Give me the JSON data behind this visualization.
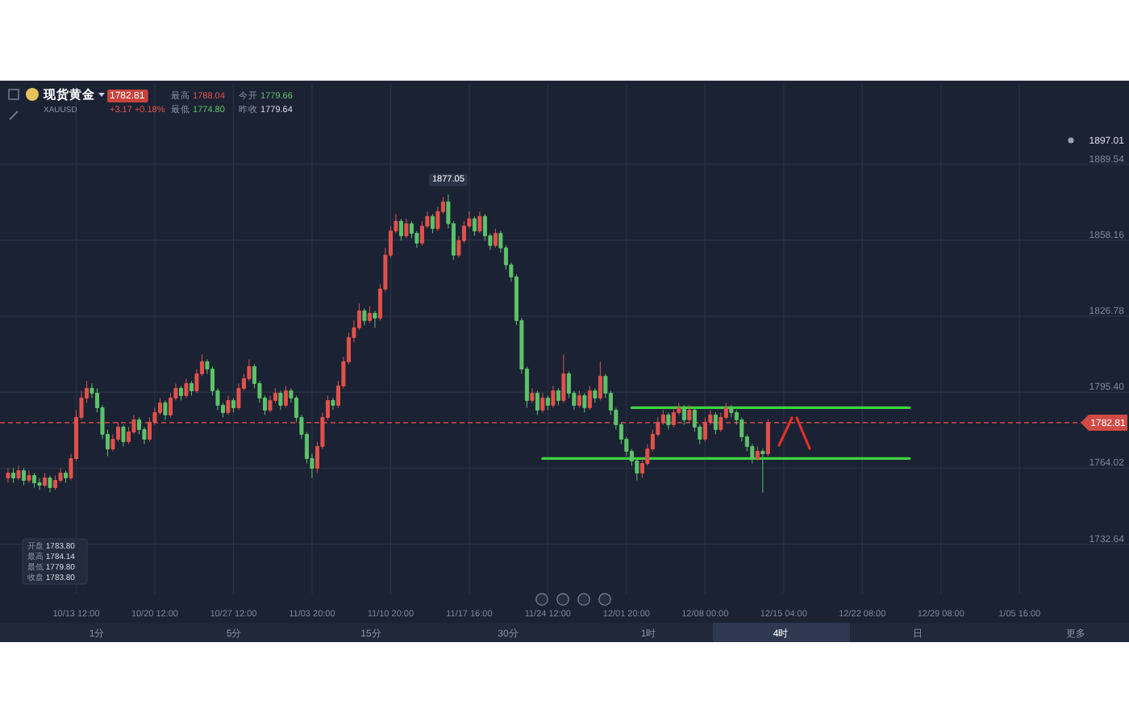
{
  "chart_data": {
    "type": "candlestick",
    "title": "现货黄金",
    "subtitle": "XAUUSD",
    "categories": [
      null,
      null,
      null,
      null,
      null,
      null,
      null,
      null,
      null,
      null,
      null,
      null,
      null,
      "10/13 12:00",
      null,
      null,
      null,
      null,
      null,
      null,
      null,
      null,
      null,
      null,
      null,
      null,
      null,
      null,
      "10/20 12:00",
      null,
      null,
      null,
      null,
      null,
      null,
      null,
      null,
      null,
      null,
      null,
      null,
      null,
      null,
      "10/27 12:00",
      null,
      null,
      null,
      null,
      null,
      null,
      null,
      null,
      null,
      null,
      null,
      null,
      null,
      null,
      "11/03 20:00",
      null,
      null,
      null,
      null,
      null,
      null,
      null,
      null,
      null,
      null,
      null,
      null,
      null,
      null,
      "11/10 20:00",
      null,
      null,
      null,
      null,
      null,
      null,
      null,
      null,
      null,
      null,
      null,
      null,
      null,
      null,
      "11/17 16:00",
      null,
      null,
      null,
      null,
      null,
      null,
      null,
      null,
      null,
      null,
      null,
      null,
      null,
      null,
      "11/24 12:00",
      null,
      null,
      null,
      null,
      null,
      null,
      null,
      null,
      null,
      null,
      null,
      null,
      null,
      null,
      "12/01 20:00",
      null,
      null,
      null,
      null,
      null,
      null,
      null,
      null,
      null,
      null,
      null,
      null,
      null,
      null,
      "12/08 00:00",
      null,
      null,
      null,
      null,
      null,
      null,
      null,
      null,
      null,
      null,
      null,
      null,
      null,
      null,
      "12/15 04:00",
      null,
      null,
      null,
      null,
      null,
      null,
      null,
      null,
      null,
      null,
      null,
      null,
      null,
      null,
      "12/22 08:00",
      null,
      null,
      null,
      null,
      null,
      null,
      null,
      null,
      null,
      null,
      null,
      null,
      null,
      null,
      "12/29 08:00",
      null,
      null,
      null,
      null,
      null,
      null,
      null,
      null,
      null,
      null,
      null,
      null,
      null,
      null,
      "1/05 16:00",
      null,
      null,
      null,
      null,
      null
    ],
    "ohlc": [
      [
        1760,
        1764,
        1758,
        1762
      ],
      [
        1762,
        1764,
        1758,
        1760
      ],
      [
        1760,
        1765,
        1759,
        1763
      ],
      [
        1763,
        1764,
        1757,
        1759
      ],
      [
        1759,
        1763,
        1758,
        1761
      ],
      [
        1761,
        1762,
        1756,
        1758
      ],
      [
        1758,
        1760,
        1755,
        1757
      ],
      [
        1757,
        1762,
        1756,
        1760
      ],
      [
        1760,
        1761,
        1754,
        1756
      ],
      [
        1756,
        1761,
        1755,
        1759
      ],
      [
        1759,
        1764,
        1758,
        1762
      ],
      [
        1762,
        1763,
        1758,
        1760
      ],
      [
        1760,
        1770,
        1759,
        1768
      ],
      [
        1768,
        1788,
        1767,
        1785
      ],
      [
        1785,
        1796,
        1784,
        1793
      ],
      [
        1793,
        1800,
        1791,
        1797
      ],
      [
        1797,
        1799,
        1793,
        1795
      ],
      [
        1795,
        1797,
        1787,
        1789
      ],
      [
        1789,
        1790,
        1776,
        1778
      ],
      [
        1778,
        1780,
        1769,
        1772
      ],
      [
        1772,
        1778,
        1771,
        1776
      ],
      [
        1776,
        1783,
        1775,
        1781
      ],
      [
        1781,
        1782,
        1773,
        1775
      ],
      [
        1775,
        1781,
        1774,
        1779
      ],
      [
        1779,
        1786,
        1778,
        1784
      ],
      [
        1784,
        1785,
        1778,
        1780
      ],
      [
        1780,
        1781,
        1774,
        1776
      ],
      [
        1776,
        1785,
        1775,
        1783
      ],
      [
        1783,
        1789,
        1782,
        1787
      ],
      [
        1787,
        1793,
        1786,
        1791
      ],
      [
        1791,
        1792,
        1784,
        1786
      ],
      [
        1786,
        1795,
        1785,
        1793
      ],
      [
        1793,
        1799,
        1792,
        1797
      ],
      [
        1797,
        1798,
        1792,
        1794
      ],
      [
        1794,
        1801,
        1793,
        1799
      ],
      [
        1799,
        1800,
        1794,
        1796
      ],
      [
        1796,
        1805,
        1795,
        1803
      ],
      [
        1803,
        1811,
        1802,
        1808
      ],
      [
        1808,
        1809,
        1803,
        1805
      ],
      [
        1805,
        1806,
        1794,
        1796
      ],
      [
        1796,
        1797,
        1788,
        1790
      ],
      [
        1790,
        1791,
        1785,
        1787
      ],
      [
        1787,
        1794,
        1786,
        1792
      ],
      [
        1792,
        1793,
        1787,
        1789
      ],
      [
        1789,
        1799,
        1788,
        1797
      ],
      [
        1797,
        1803,
        1796,
        1801
      ],
      [
        1801,
        1809,
        1800,
        1806
      ],
      [
        1806,
        1807,
        1797,
        1799
      ],
      [
        1799,
        1800,
        1791,
        1793
      ],
      [
        1793,
        1794,
        1786,
        1788
      ],
      [
        1788,
        1794,
        1787,
        1792
      ],
      [
        1792,
        1797,
        1791,
        1795
      ],
      [
        1795,
        1796,
        1788,
        1790
      ],
      [
        1790,
        1798,
        1789,
        1796
      ],
      [
        1796,
        1797,
        1791,
        1793
      ],
      [
        1793,
        1794,
        1783,
        1785
      ],
      [
        1785,
        1786,
        1776,
        1778
      ],
      [
        1778,
        1779,
        1766,
        1768
      ],
      [
        1768,
        1770,
        1760,
        1764
      ],
      [
        1764,
        1775,
        1762,
        1773
      ],
      [
        1773,
        1787,
        1772,
        1785
      ],
      [
        1785,
        1794,
        1784,
        1792
      ],
      [
        1792,
        1793,
        1788,
        1790
      ],
      [
        1790,
        1800,
        1789,
        1798
      ],
      [
        1798,
        1810,
        1797,
        1808
      ],
      [
        1808,
        1820,
        1807,
        1818
      ],
      [
        1818,
        1825,
        1816,
        1822
      ],
      [
        1822,
        1832,
        1821,
        1829
      ],
      [
        1829,
        1830,
        1823,
        1825
      ],
      [
        1825,
        1831,
        1824,
        1828
      ],
      [
        1828,
        1829,
        1822,
        1826
      ],
      [
        1826,
        1840,
        1825,
        1838
      ],
      [
        1838,
        1855,
        1837,
        1852
      ],
      [
        1852,
        1864,
        1851,
        1862
      ],
      [
        1862,
        1869,
        1861,
        1866
      ],
      [
        1866,
        1867,
        1858,
        1860
      ],
      [
        1860,
        1867,
        1859,
        1865
      ],
      [
        1865,
        1866,
        1859,
        1861
      ],
      [
        1861,
        1862,
        1855,
        1857
      ],
      [
        1857,
        1866,
        1856,
        1864
      ],
      [
        1864,
        1870,
        1863,
        1868
      ],
      [
        1868,
        1869,
        1861,
        1863
      ],
      [
        1863,
        1872,
        1862,
        1870
      ],
      [
        1870,
        1876,
        1869,
        1874
      ],
      [
        1874,
        1877.05,
        1863,
        1865
      ],
      [
        1865,
        1866,
        1850,
        1852
      ],
      [
        1852,
        1860,
        1851,
        1858
      ],
      [
        1858,
        1866,
        1857,
        1864
      ],
      [
        1864,
        1870,
        1863,
        1867
      ],
      [
        1867,
        1868,
        1860,
        1862
      ],
      [
        1862,
        1870,
        1861,
        1868
      ],
      [
        1868,
        1869,
        1858,
        1860
      ],
      [
        1860,
        1861,
        1854,
        1856
      ],
      [
        1856,
        1863,
        1855,
        1861
      ],
      [
        1861,
        1862,
        1853,
        1855
      ],
      [
        1855,
        1856,
        1846,
        1848
      ],
      [
        1848,
        1849,
        1841,
        1843
      ],
      [
        1843,
        1844,
        1823,
        1825
      ],
      [
        1825,
        1826,
        1803,
        1805
      ],
      [
        1805,
        1806,
        1789,
        1792
      ],
      [
        1792,
        1797,
        1791,
        1795
      ],
      [
        1795,
        1796,
        1786,
        1788
      ],
      [
        1788,
        1795,
        1787,
        1793
      ],
      [
        1793,
        1794,
        1788,
        1790
      ],
      [
        1790,
        1798,
        1789,
        1796
      ],
      [
        1796,
        1797,
        1790,
        1792
      ],
      [
        1792,
        1811,
        1791,
        1803
      ],
      [
        1803,
        1804,
        1793,
        1795
      ],
      [
        1795,
        1796,
        1788,
        1790
      ],
      [
        1790,
        1796,
        1789,
        1794
      ],
      [
        1794,
        1795,
        1787,
        1789
      ],
      [
        1789,
        1798,
        1788,
        1796
      ],
      [
        1796,
        1797,
        1791,
        1793
      ],
      [
        1793,
        1808,
        1792,
        1802
      ],
      [
        1802,
        1803,
        1793,
        1795
      ],
      [
        1795,
        1796,
        1786,
        1788
      ],
      [
        1788,
        1789,
        1780,
        1782
      ],
      [
        1782,
        1783,
        1774,
        1776
      ],
      [
        1776,
        1777,
        1769,
        1771
      ],
      [
        1771,
        1772,
        1765,
        1767
      ],
      [
        1767,
        1768,
        1759,
        1762
      ],
      [
        1762,
        1768,
        1760,
        1766
      ],
      [
        1766,
        1774,
        1765,
        1772
      ],
      [
        1772,
        1780,
        1771,
        1778
      ],
      [
        1778,
        1785,
        1777,
        1783
      ],
      [
        1783,
        1788,
        1782,
        1786
      ],
      [
        1786,
        1787,
        1780,
        1782
      ],
      [
        1782,
        1789,
        1781,
        1787
      ],
      [
        1787,
        1791,
        1786,
        1789
      ],
      [
        1789,
        1790,
        1782,
        1784
      ],
      [
        1784,
        1790,
        1783,
        1788
      ],
      [
        1788,
        1789,
        1779,
        1781
      ],
      [
        1781,
        1782,
        1774,
        1776
      ],
      [
        1776,
        1785,
        1775,
        1783
      ],
      [
        1783,
        1788,
        1782,
        1786
      ],
      [
        1786,
        1787,
        1778,
        1780
      ],
      [
        1780,
        1787,
        1779,
        1785
      ],
      [
        1785,
        1791,
        1784,
        1789
      ],
      [
        1789,
        1790,
        1785,
        1787
      ],
      [
        1787,
        1788,
        1782,
        1784
      ],
      [
        1784,
        1785,
        1775,
        1777
      ],
      [
        1777,
        1778,
        1771,
        1773
      ],
      [
        1773,
        1774,
        1766,
        1768
      ],
      [
        1768,
        1773,
        1767,
        1771
      ],
      [
        1771,
        1772,
        1754,
        1770
      ],
      [
        1770,
        1784.14,
        1769,
        1782.81
      ],
      null,
      null,
      null,
      null,
      null,
      null,
      null,
      null,
      null,
      null,
      null,
      null,
      null,
      null,
      null,
      null,
      null,
      null,
      null,
      null,
      null,
      null,
      null,
      null,
      null,
      null,
      null,
      null,
      null,
      null,
      null,
      null,
      null,
      null,
      null,
      null,
      null,
      null,
      null,
      null,
      null,
      null,
      null,
      null,
      null,
      null,
      null,
      null,
      null,
      null,
      null,
      null,
      null
    ],
    "colors": [
      "#e0524c",
      "#5dc26a",
      "#e0524c",
      "#5dc26a",
      "#e0524c",
      "#5dc26a",
      "#5dc26a",
      "#e0524c",
      "#5dc26a",
      "#e0524c",
      "#e0524c",
      "#5dc26a",
      "#e0524c",
      "#e0524c",
      "#e0524c",
      "#e0524c",
      "#5dc26a",
      "#5dc26a",
      "#5dc26a",
      "#5dc26a",
      "#e0524c",
      "#e0524c",
      "#5dc26a",
      "#e0524c",
      "#e0524c",
      "#5dc26a",
      "#5dc26a",
      "#e0524c",
      "#e0524c",
      "#e0524c",
      "#5dc26a",
      "#e0524c",
      "#e0524c",
      "#5dc26a",
      "#e0524c",
      "#5dc26a",
      "#e0524c",
      "#e0524c",
      "#5dc26a",
      "#5dc26a",
      "#5dc26a",
      "#5dc26a",
      "#e0524c",
      "#5dc26a",
      "#e0524c",
      "#e0524c",
      "#e0524c",
      "#5dc26a",
      "#5dc26a",
      "#5dc26a",
      "#e0524c",
      "#e0524c",
      "#5dc26a",
      "#e0524c",
      "#5dc26a",
      "#5dc26a",
      "#5dc26a",
      "#5dc26a",
      "#5dc26a",
      "#e0524c",
      "#e0524c",
      "#e0524c",
      "#5dc26a",
      "#e0524c",
      "#e0524c",
      "#e0524c",
      "#e0524c",
      "#e0524c",
      "#5dc26a",
      "#e0524c",
      "#5dc26a",
      "#e0524c",
      "#e0524c",
      "#e0524c",
      "#e0524c",
      "#5dc26a",
      "#e0524c",
      "#5dc26a",
      "#5dc26a",
      "#e0524c",
      "#e0524c",
      "#5dc26a",
      "#e0524c",
      "#e0524c",
      "#5dc26a",
      "#5dc26a",
      "#e0524c",
      "#e0524c",
      "#e0524c",
      "#5dc26a",
      "#e0524c",
      "#5dc26a",
      "#5dc26a",
      "#e0524c",
      "#5dc26a",
      "#5dc26a",
      "#5dc26a",
      "#5dc26a",
      "#5dc26a",
      "#5dc26a",
      "#e0524c",
      "#5dc26a",
      "#e0524c",
      "#5dc26a",
      "#e0524c",
      "#5dc26a",
      "#e0524c",
      "#5dc26a",
      "#5dc26a",
      "#e0524c",
      "#5dc26a",
      "#e0524c",
      "#5dc26a",
      "#e0524c",
      "#5dc26a",
      "#5dc26a",
      "#5dc26a",
      "#5dc26a",
      "#5dc26a",
      "#5dc26a",
      "#5dc26a",
      "#e0524c",
      "#e0524c",
      "#e0524c",
      "#e0524c",
      "#e0524c",
      "#5dc26a",
      "#e0524c",
      "#e0524c",
      "#5dc26a",
      "#e0524c",
      "#5dc26a",
      "#5dc26a",
      "#e0524c",
      "#e0524c",
      "#5dc26a",
      "#e0524c",
      "#e0524c",
      "#5dc26a",
      "#5dc26a",
      "#5dc26a",
      "#5dc26a",
      "#5dc26a",
      "#e0524c",
      "#5dc26a",
      "#e0524c",
      null,
      null,
      null,
      null,
      null,
      null,
      null,
      null,
      null,
      null,
      null,
      null,
      null,
      null,
      null,
      null,
      null,
      null,
      null,
      null,
      null,
      null,
      null,
      null,
      null,
      null,
      null,
      null,
      null,
      null,
      null,
      null,
      null,
      null,
      null,
      null,
      null,
      null,
      null,
      null,
      null,
      null,
      null,
      null,
      null,
      null,
      null,
      null,
      null,
      null,
      null,
      null,
      null
    ],
    "series": [
      {
        "type": "line",
        "color": "#3ed43e",
        "values": [
          null,
          null,
          null,
          null,
          null,
          null,
          null,
          null,
          null,
          null,
          null,
          null,
          null,
          null,
          null,
          null,
          null,
          null,
          null,
          null,
          null,
          null,
          null,
          null,
          null,
          null,
          null,
          null,
          null,
          null,
          null,
          null,
          null,
          null,
          null,
          null,
          null,
          null,
          null,
          null,
          null,
          null,
          null,
          null,
          null,
          null,
          null,
          null,
          null,
          null,
          null,
          null,
          null,
          null,
          null,
          null,
          null,
          null,
          null,
          null,
          null,
          null,
          null,
          null,
          null,
          null,
          null,
          null,
          null,
          null,
          null,
          null,
          null,
          null,
          null,
          null,
          null,
          null,
          null,
          null,
          null,
          null,
          null,
          null,
          null,
          null,
          null,
          null,
          null,
          null,
          null,
          null,
          null,
          null,
          null,
          null,
          null,
          null,
          null,
          null,
          null,
          null,
          null,
          null,
          null,
          null,
          null,
          null,
          null,
          null,
          null,
          null,
          null,
          null,
          null,
          null,
          null,
          null,
          null,
          1789,
          1789,
          1789,
          1789,
          1789,
          1789,
          1789,
          1789,
          1789,
          1789,
          1789,
          1789,
          1789,
          1789,
          1789,
          1789,
          1789,
          1789,
          1789,
          1789,
          1789,
          1789,
          1789,
          1789,
          1789,
          1789,
          1789,
          1789,
          1789,
          1789,
          1789,
          1789,
          1789,
          1789,
          1789,
          1789,
          1789,
          1789,
          1789,
          1789,
          1789,
          1789,
          1789,
          1789,
          1789,
          1789,
          1789,
          1789,
          1789,
          1789,
          1789,
          1789,
          1789,
          1789,
          null,
          null,
          null,
          null,
          null,
          null,
          null,
          null,
          null,
          null,
          null,
          null,
          null,
          null,
          null,
          null,
          null,
          null,
          null,
          null,
          null,
          null,
          null,
          null,
          null,
          null
        ]
      },
      {
        "type": "line",
        "color": "#3ed43e",
        "values": [
          null,
          null,
          null,
          null,
          null,
          null,
          null,
          null,
          null,
          null,
          null,
          null,
          null,
          null,
          null,
          null,
          null,
          null,
          null,
          null,
          null,
          null,
          null,
          null,
          null,
          null,
          null,
          null,
          null,
          null,
          null,
          null,
          null,
          null,
          null,
          null,
          null,
          null,
          null,
          null,
          null,
          null,
          null,
          null,
          null,
          null,
          null,
          null,
          null,
          null,
          null,
          null,
          null,
          null,
          null,
          null,
          null,
          null,
          null,
          null,
          null,
          null,
          null,
          null,
          null,
          null,
          null,
          null,
          null,
          null,
          null,
          null,
          null,
          null,
          null,
          null,
          null,
          null,
          null,
          null,
          null,
          null,
          null,
          null,
          null,
          null,
          null,
          null,
          null,
          null,
          null,
          null,
          null,
          null,
          null,
          null,
          null,
          null,
          null,
          null,
          null,
          null,
          1768,
          1768,
          1768,
          1768,
          1768,
          1768,
          1768,
          1768,
          1768,
          1768,
          1768,
          1768,
          1768,
          1768,
          1768,
          1768,
          1768,
          1768,
          1768,
          1768,
          1768,
          1768,
          1768,
          1768,
          1768,
          1768,
          1768,
          1768,
          1768,
          1768,
          1768,
          1768,
          1768,
          1768,
          1768,
          1768,
          1768,
          1768,
          1768,
          1768,
          1768,
          1768,
          1768,
          1768,
          1768,
          1768,
          1768,
          1768,
          1768,
          1768,
          1768,
          1768,
          1768,
          1768,
          1768,
          1768,
          1768,
          1768,
          1768,
          1768,
          1768,
          1768,
          1768,
          1768,
          1768,
          1768,
          1768,
          1768,
          1768,
          1768,
          1768,
          null,
          null,
          null,
          null,
          null,
          null,
          null,
          null,
          null,
          null,
          null,
          null,
          null,
          null,
          null,
          null,
          null,
          null,
          null,
          null,
          null,
          null,
          null,
          null,
          null,
          null
        ]
      }
    ],
    "ylim": [
      1712.2,
      1922.7
    ],
    "yticks": [
      {
        "value": 1889.54,
        "label": "1889.54"
      },
      {
        "value": 1858.16,
        "label": "1858.16"
      },
      {
        "value": 1826.78,
        "label": "1826.78"
      },
      {
        "value": 1795.4,
        "label": "1795.40"
      },
      {
        "value": 1764.02,
        "label": "1764.02"
      },
      {
        "value": 1732.64,
        "label": "1732.64"
      }
    ],
    "grid": true,
    "ref_lines": [
      {
        "axis": "y",
        "value": 1782.81,
        "label": "1782.81",
        "color": "#d24a44",
        "line_style": "dashed"
      }
    ],
    "annotations": [
      "1782.81",
      "最高 1788.04",
      "今开 1779.66",
      "+3.17 +0.18%",
      "最低 1774.80",
      "昨收 1779.64",
      "开盘 1783.80",
      "最高 1784.14",
      "最低 1779.80",
      "收盘 1783.80",
      "1分",
      "5分",
      "15分",
      "30分",
      "1时",
      "4时",
      "日",
      "更多",
      "1897.01",
      {
        "text": "1877.05",
        "y": 1877.05
      }
    ]
  }
}
